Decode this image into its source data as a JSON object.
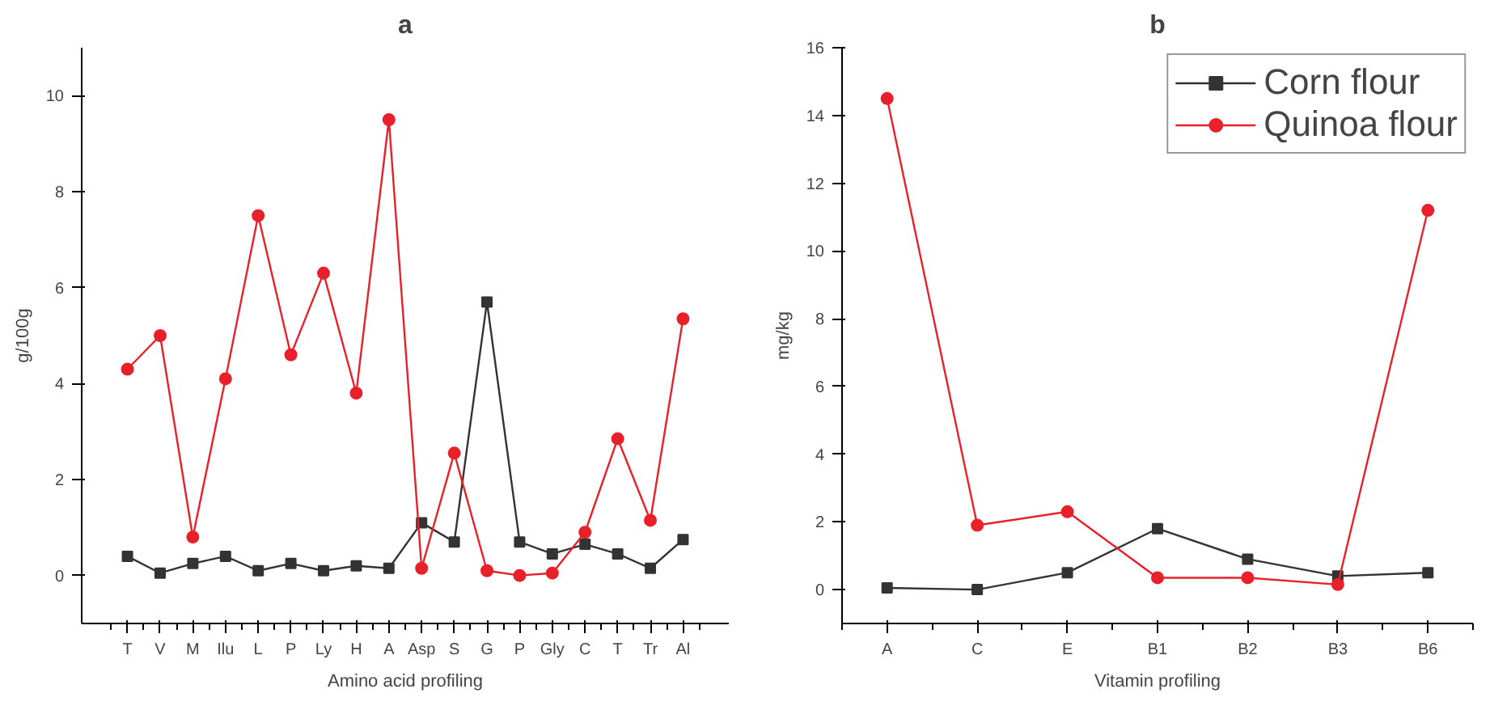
{
  "chart_data": [
    {
      "type": "line",
      "title": "a",
      "xlabel": "Amino acid profiling",
      "ylabel": "g/100g",
      "categories": [
        "T",
        "V",
        "M",
        "Ilu",
        "L",
        "P",
        "Ly",
        "H",
        "A",
        "Asp",
        "S",
        "G",
        "P",
        "Gly",
        "C",
        "T",
        "Tr",
        "Al"
      ],
      "series": [
        {
          "color": "#333333",
          "marker": "square",
          "values": [
            0.4,
            0.05,
            0.25,
            0.4,
            0.1,
            0.25,
            0.1,
            0.2,
            0.15,
            1.1,
            0.7,
            5.7,
            0.7,
            0.45,
            0.65,
            0.45,
            0.15,
            0.75
          ]
        },
        {
          "color": "#e8202a",
          "marker": "circle",
          "values": [
            4.3,
            5.0,
            0.8,
            4.1,
            7.5,
            4.6,
            6.3,
            3.8,
            9.5,
            0.15,
            2.55,
            0.1,
            0.0,
            0.05,
            0.9,
            2.85,
            1.15,
            5.35
          ]
        }
      ],
      "ylim": [
        -1,
        11
      ],
      "yticks": [
        0,
        2,
        4,
        6,
        8,
        10
      ],
      "grid": false,
      "legend": false
    },
    {
      "type": "line",
      "title": "b",
      "xlabel": "Vitamin profiling",
      "ylabel": "mg/kg",
      "categories": [
        "A",
        "C",
        "E",
        "B1",
        "B2",
        "B3",
        "B6"
      ],
      "series": [
        {
          "name": "Corn flour",
          "color": "#333333",
          "marker": "square",
          "values": [
            0.05,
            0.0,
            0.5,
            1.8,
            0.9,
            0.4,
            0.5
          ]
        },
        {
          "name": "Quinoa flour",
          "color": "#e8202a",
          "marker": "circle",
          "values": [
            14.5,
            1.9,
            2.3,
            0.35,
            0.35,
            0.15,
            11.2
          ]
        }
      ],
      "ylim": [
        -1,
        16
      ],
      "yticks": [
        0,
        2,
        4,
        6,
        8,
        10,
        12,
        14,
        16
      ],
      "grid": false,
      "legend": "top right"
    }
  ]
}
